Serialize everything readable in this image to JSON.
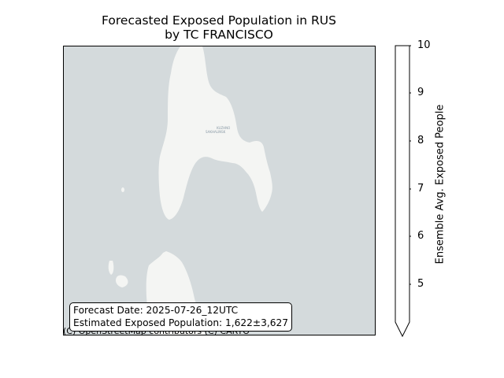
{
  "title": {
    "line1": "Forecasted Exposed Population in RUS",
    "line2": "by TC FRANCISCO"
  },
  "map": {
    "water_color": "#d4dadc",
    "land_color": "#f4f5f3",
    "place_label_line1": "KUZHNO",
    "place_label_line2": "SAKHALINSK"
  },
  "info_box": {
    "forecast_date": "Forecast Date: 2025-07-26_12UTC",
    "exposed_population": "Estimated Exposed Population: 1,622±3,627"
  },
  "attribution": "(C) OpenStreetMap contributors (C) CARTO",
  "colorbar": {
    "label": "Ensemble Avg. Exposed People",
    "ticks": [
      "10",
      "9",
      "8",
      "7",
      "6",
      "5"
    ],
    "color": "#ffffff",
    "extend": "min"
  }
}
